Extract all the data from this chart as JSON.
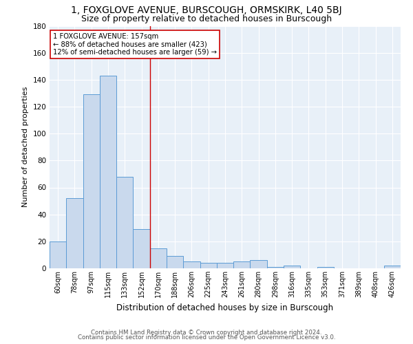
{
  "title": "1, FOXGLOVE AVENUE, BURSCOUGH, ORMSKIRK, L40 5BJ",
  "subtitle": "Size of property relative to detached houses in Burscough",
  "xlabel": "Distribution of detached houses by size in Burscough",
  "ylabel": "Number of detached properties",
  "bar_labels": [
    "60sqm",
    "78sqm",
    "97sqm",
    "115sqm",
    "133sqm",
    "152sqm",
    "170sqm",
    "188sqm",
    "206sqm",
    "225sqm",
    "243sqm",
    "261sqm",
    "280sqm",
    "298sqm",
    "316sqm",
    "335sqm",
    "353sqm",
    "371sqm",
    "389sqm",
    "408sqm",
    "426sqm"
  ],
  "bar_values": [
    20,
    52,
    129,
    143,
    68,
    29,
    15,
    9,
    5,
    4,
    4,
    5,
    6,
    1,
    2,
    0,
    1,
    0,
    0,
    0,
    2
  ],
  "bar_color": "#c9d9ed",
  "bar_edge_color": "#5b9bd5",
  "property_line_x": 5.5,
  "property_line_color": "#cc0000",
  "annotation_text": "1 FOXGLOVE AVENUE: 157sqm\n← 88% of detached houses are smaller (423)\n12% of semi-detached houses are larger (59) →",
  "annotation_box_color": "#ffffff",
  "annotation_box_edge": "#cc0000",
  "ylim": [
    0,
    180
  ],
  "footnote1": "Contains HM Land Registry data © Crown copyright and database right 2024.",
  "footnote2": "Contains public sector information licensed under the Open Government Licence v3.0.",
  "background_color": "#e8f0f8",
  "grid_color": "#ffffff",
  "title_fontsize": 10,
  "subtitle_fontsize": 9
}
